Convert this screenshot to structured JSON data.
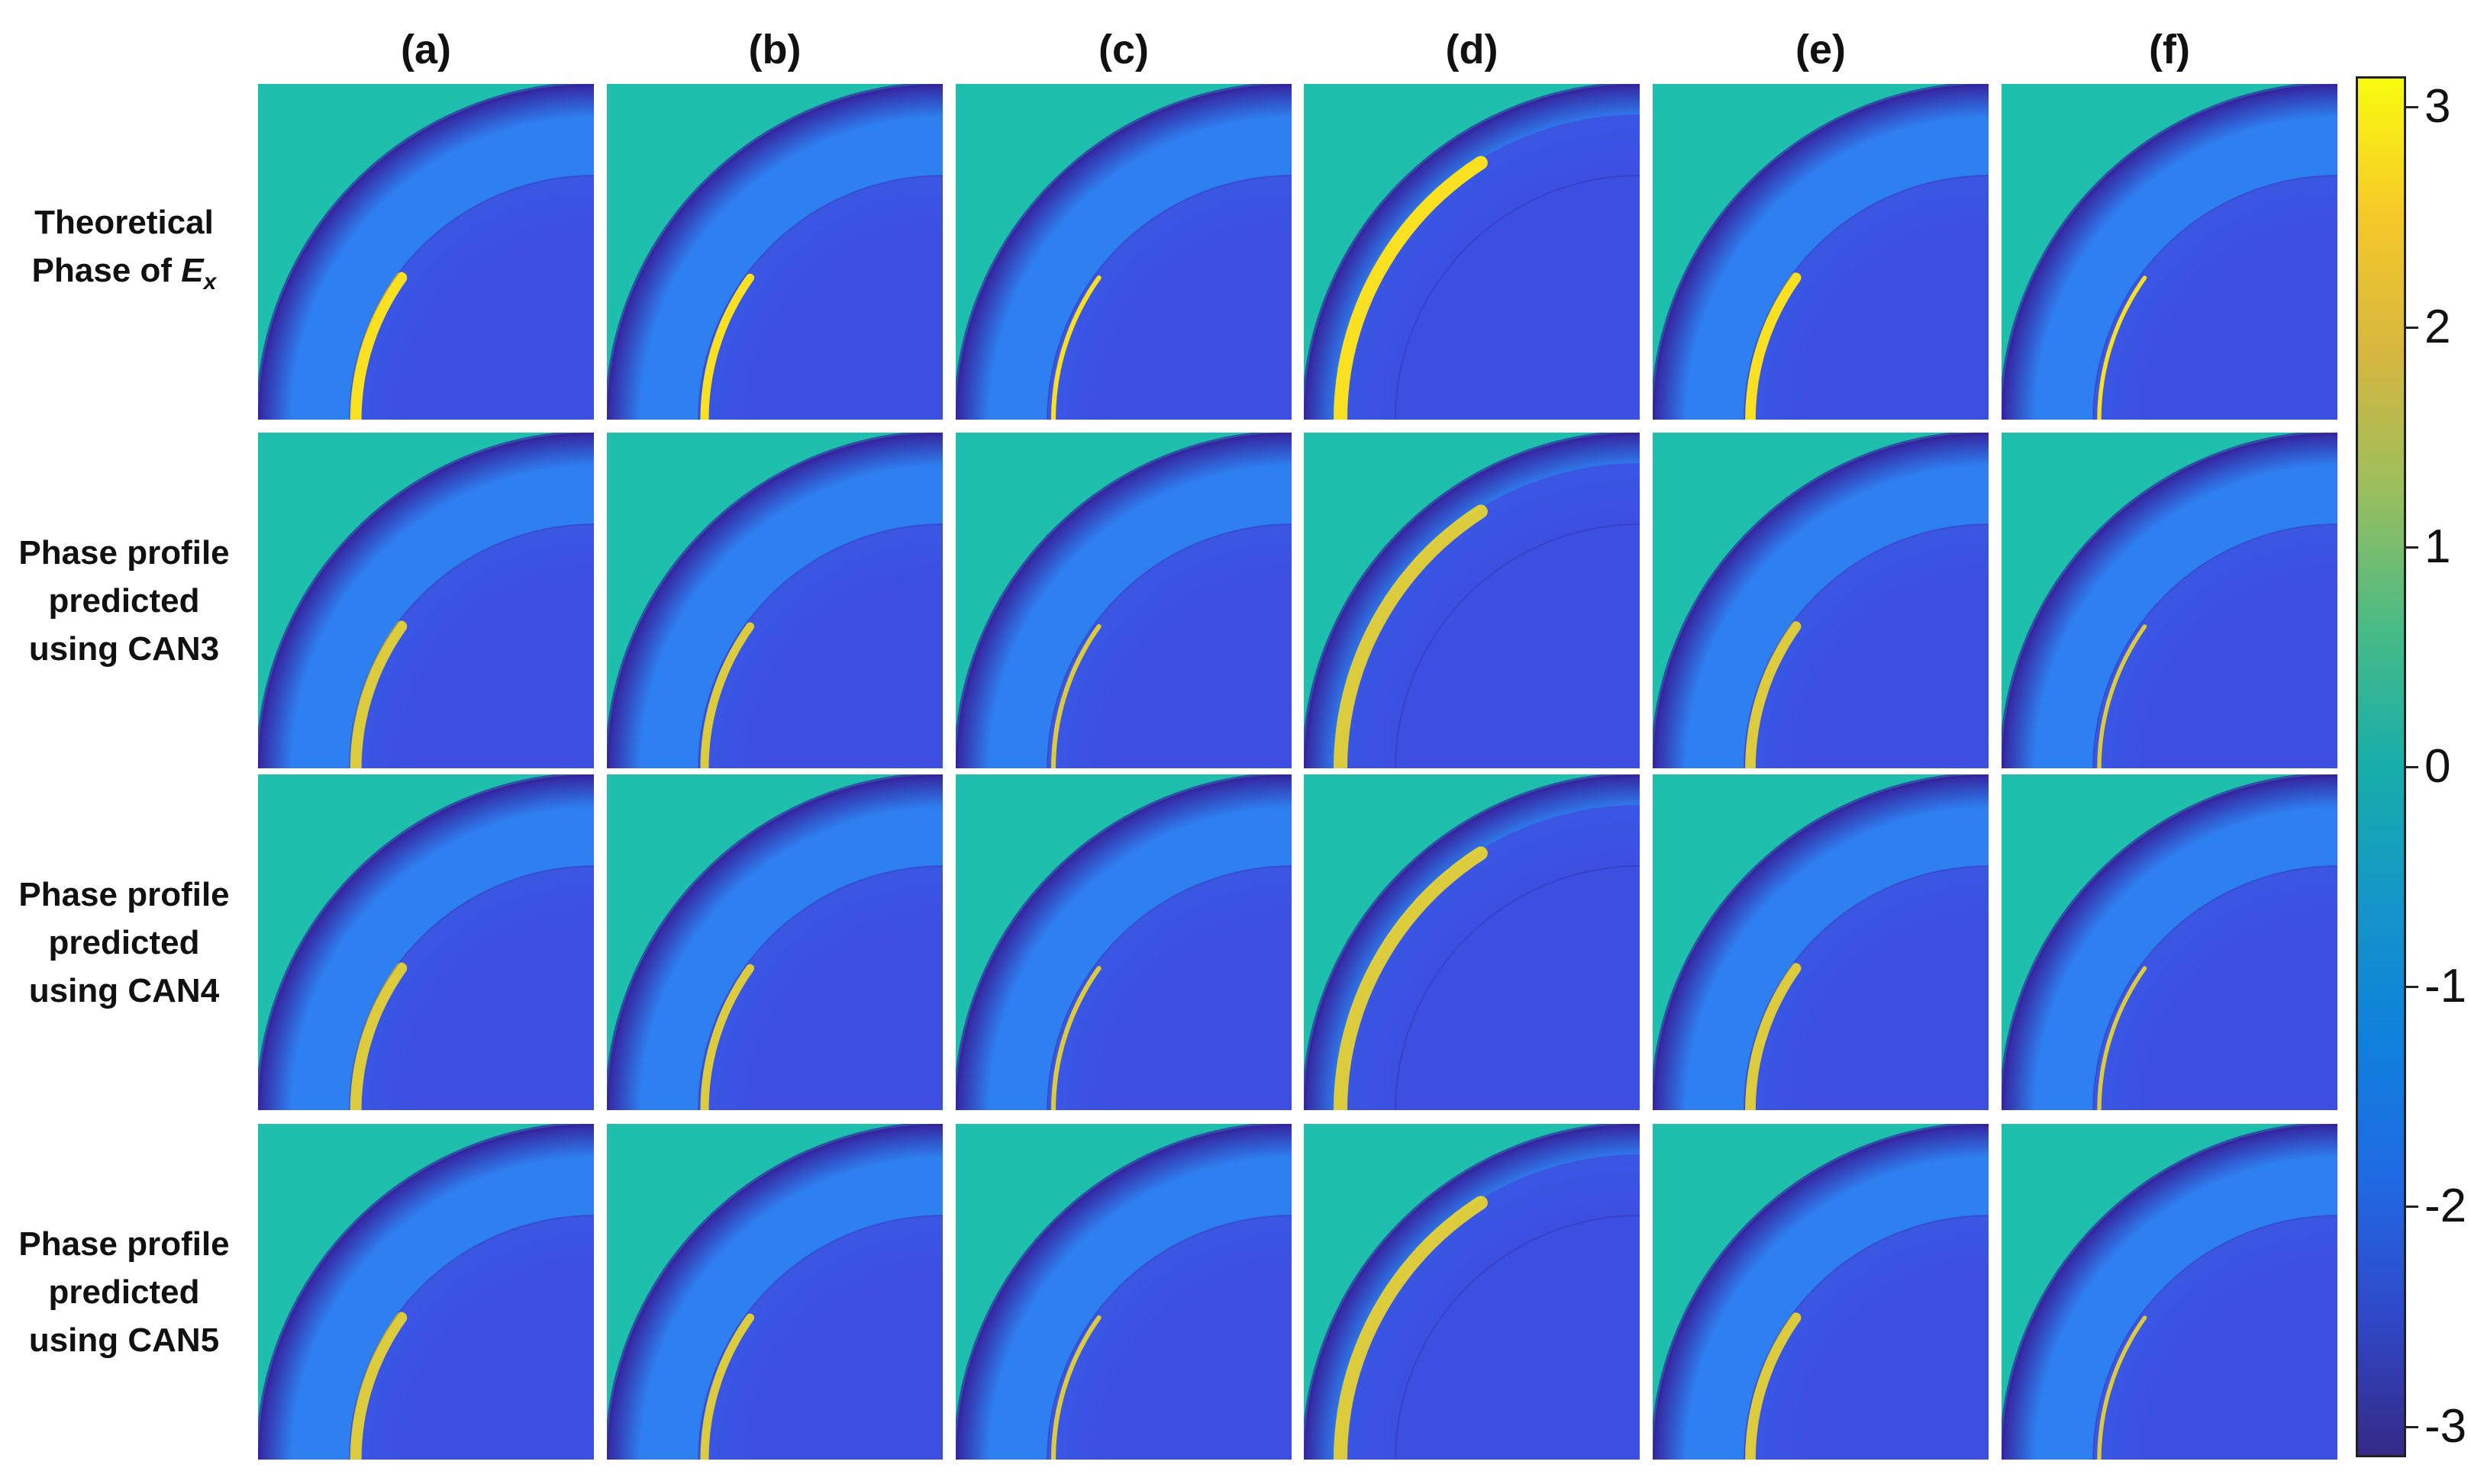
{
  "columns": [
    "(a)",
    "(b)",
    "(c)",
    "(d)",
    "(e)",
    "(f)"
  ],
  "rows": [
    {
      "line1": "Theoretical",
      "line2": "Phase of ",
      "var": "E",
      "sub": "x",
      "line3": ""
    },
    {
      "line1": "Phase profile",
      "line2": "predicted",
      "var": "",
      "sub": "",
      "line3": "using CAN3"
    },
    {
      "line1": "Phase profile",
      "line2": "predicted",
      "var": "",
      "sub": "",
      "line3": "using CAN4"
    },
    {
      "line1": "Phase profile",
      "line2": "predicted",
      "var": "",
      "sub": "",
      "line3": "using CAN5"
    }
  ],
  "colorbar": {
    "min": -3.14,
    "max": 3.14,
    "ticks": [
      "3",
      "2",
      "1",
      "0",
      "-1",
      "-2",
      "-3"
    ],
    "tick_values": [
      3,
      2,
      1,
      0,
      -1,
      -2,
      -3
    ],
    "colormap": "parula"
  },
  "colors": {
    "background_zero": "#1fbfae",
    "ring_light_blue": "#2e7ff0",
    "interior_blue": "#3c4fe0",
    "dark_blue": "#3525a0",
    "yellow": "#f9e020"
  },
  "panel_features": {
    "column_intensity": [
      0.8,
      0.5,
      0.15,
      1.0,
      0.7,
      0.1
    ],
    "row_noise": [
      0.0,
      1.0,
      1.0,
      1.0
    ]
  }
}
